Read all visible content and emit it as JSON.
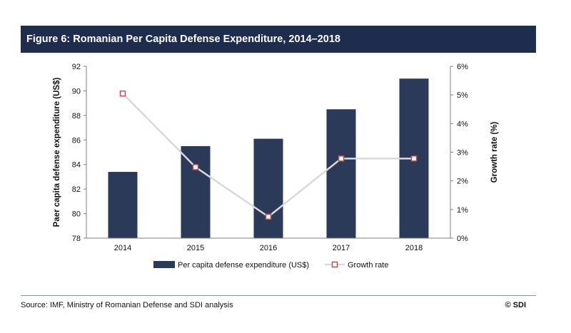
{
  "header": {
    "title": "Figure 6: Romanian Per Capita Defense Expenditure, 2014–2018"
  },
  "footer": {
    "source": "Source: IMF, Ministry of Romanian Defense and SDI analysis",
    "copyright": "©  SDI"
  },
  "chart_data": {
    "type": "bar",
    "title": "Figure 6: Romanian Per Capita Defense Expenditure, 2014–2018",
    "categories": [
      "2014",
      "2015",
      "2016",
      "2017",
      "2018"
    ],
    "series": [
      {
        "name": "Per capita defense expenditure  (US$)",
        "type": "bar",
        "axis": "left",
        "color": "#2b3a58",
        "values": [
          83.4,
          85.5,
          86.1,
          88.5,
          91.0
        ]
      },
      {
        "name": "Growth rate",
        "type": "line",
        "axis": "right",
        "color": "#d9d9d9",
        "marker_color": "#c0504d",
        "values": [
          5.05,
          2.48,
          0.75,
          2.78,
          2.78
        ]
      }
    ],
    "ylabel": "Paer capita defense expenditure (US$)",
    "ylim": [
      78,
      92
    ],
    "yticks": [
      "78",
      "80",
      "82",
      "84",
      "86",
      "88",
      "90",
      "92"
    ],
    "y2label": "Growth rate (%)",
    "y2lim": [
      0,
      6
    ],
    "y2ticks": [
      "0%",
      "1%",
      "2%",
      "3%",
      "4%",
      "5%",
      "6%"
    ],
    "legend_position": "bottom",
    "grid": false
  }
}
